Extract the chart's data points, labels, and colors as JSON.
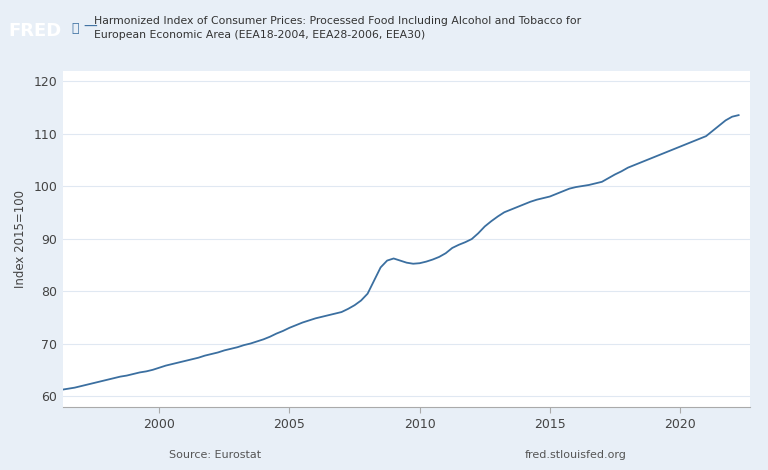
{
  "title_line1": "Harmonized Index of Consumer Prices: Processed Food Including Alcohol and Tobacco for",
  "title_line2": "European Economic Area (EEA18-2004, EEA28-2006, EEA30)",
  "ylabel": "Index 2015=100",
  "source_left": "Source: Eurostat",
  "source_right": "fred.stlouisfed.org",
  "line_color": "#3b6fa0",
  "background_color": "#e8eff7",
  "plot_bg_color": "#ffffff",
  "ylim": [
    58,
    122
  ],
  "yticks": [
    60,
    70,
    80,
    90,
    100,
    110,
    120
  ],
  "xticks": [
    2000,
    2005,
    2010,
    2015,
    2020
  ],
  "x_start_year": 1996.3,
  "x_end_year": 2022.7,
  "data": {
    "dates": [
      1996.25,
      1996.5,
      1996.75,
      1997.0,
      1997.25,
      1997.5,
      1997.75,
      1998.0,
      1998.25,
      1998.5,
      1998.75,
      1999.0,
      1999.25,
      1999.5,
      1999.75,
      2000.0,
      2000.25,
      2000.5,
      2000.75,
      2001.0,
      2001.25,
      2001.5,
      2001.75,
      2002.0,
      2002.25,
      2002.5,
      2002.75,
      2003.0,
      2003.25,
      2003.5,
      2003.75,
      2004.0,
      2004.25,
      2004.5,
      2004.75,
      2005.0,
      2005.25,
      2005.5,
      2005.75,
      2006.0,
      2006.25,
      2006.5,
      2006.75,
      2007.0,
      2007.25,
      2007.5,
      2007.75,
      2008.0,
      2008.25,
      2008.5,
      2008.75,
      2009.0,
      2009.25,
      2009.5,
      2009.75,
      2010.0,
      2010.25,
      2010.5,
      2010.75,
      2011.0,
      2011.25,
      2011.5,
      2011.75,
      2012.0,
      2012.25,
      2012.5,
      2012.75,
      2013.0,
      2013.25,
      2013.5,
      2013.75,
      2014.0,
      2014.25,
      2014.5,
      2014.75,
      2015.0,
      2015.25,
      2015.5,
      2015.75,
      2016.0,
      2016.25,
      2016.5,
      2016.75,
      2017.0,
      2017.25,
      2017.5,
      2017.75,
      2018.0,
      2018.25,
      2018.5,
      2018.75,
      2019.0,
      2019.25,
      2019.5,
      2019.75,
      2020.0,
      2020.25,
      2020.5,
      2020.75,
      2021.0,
      2021.25,
      2021.5,
      2021.75,
      2022.0,
      2022.25
    ],
    "values": [
      61.2,
      61.4,
      61.6,
      61.9,
      62.2,
      62.5,
      62.8,
      63.1,
      63.4,
      63.7,
      63.9,
      64.2,
      64.5,
      64.7,
      65.0,
      65.4,
      65.8,
      66.1,
      66.4,
      66.7,
      67.0,
      67.3,
      67.7,
      68.0,
      68.3,
      68.7,
      69.0,
      69.3,
      69.7,
      70.0,
      70.4,
      70.8,
      71.3,
      71.9,
      72.4,
      73.0,
      73.5,
      74.0,
      74.4,
      74.8,
      75.1,
      75.4,
      75.7,
      76.0,
      76.6,
      77.3,
      78.2,
      79.5,
      82.0,
      84.5,
      85.8,
      86.2,
      85.8,
      85.4,
      85.2,
      85.3,
      85.6,
      86.0,
      86.5,
      87.2,
      88.2,
      88.8,
      89.3,
      89.9,
      91.0,
      92.3,
      93.3,
      94.2,
      95.0,
      95.5,
      96.0,
      96.5,
      97.0,
      97.4,
      97.7,
      98.0,
      98.5,
      99.0,
      99.5,
      99.8,
      100.0,
      100.2,
      100.5,
      100.8,
      101.5,
      102.2,
      102.8,
      103.5,
      104.0,
      104.5,
      105.0,
      105.5,
      106.0,
      106.5,
      107.0,
      107.5,
      108.0,
      108.5,
      109.0,
      109.5,
      110.5,
      111.5,
      112.5,
      113.2,
      113.5
    ]
  }
}
